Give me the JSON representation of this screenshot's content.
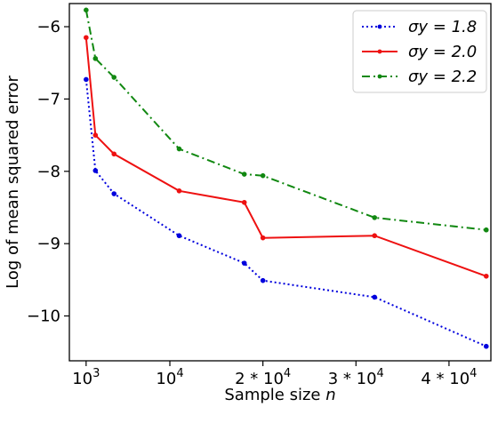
{
  "chart_data": {
    "type": "line",
    "title": "",
    "xlabel": "Sample size",
    "xlabel_var": "n",
    "ylabel": "Log of mean squared error",
    "xlim": [
      -800,
      44500
    ],
    "ylim": [
      -10.62,
      -5.68
    ],
    "x_ticks": [
      {
        "value": 1000,
        "base": "10",
        "sup": "3"
      },
      {
        "value": 10000,
        "base": "10",
        "sup": "4"
      },
      {
        "value": 20000,
        "base": "2 * 10",
        "sup": "4"
      },
      {
        "value": 30000,
        "base": "3 * 10",
        "sup": "4"
      },
      {
        "value": 40000,
        "base": "4 * 10",
        "sup": "4"
      }
    ],
    "y_ticks": [
      {
        "value": -6,
        "label": "−6"
      },
      {
        "value": -7,
        "label": "−7"
      },
      {
        "value": -8,
        "label": "−8"
      },
      {
        "value": -9,
        "label": "−9"
      },
      {
        "value": -10,
        "label": "−10"
      }
    ],
    "grid": false,
    "legend_position": "top-right",
    "x": [
      1000,
      2000,
      4000,
      11000,
      18000,
      20000,
      32000,
      44000
    ],
    "series": [
      {
        "name": "σy = 1.8",
        "color": "#0000dd",
        "linestyle": "dotted",
        "values": [
          -6.73,
          -7.99,
          -8.31,
          -8.89,
          -9.27,
          -9.51,
          -9.74,
          -10.42
        ]
      },
      {
        "name": "σy = 2.0",
        "color": "#ee1111",
        "linestyle": "solid",
        "values": [
          -6.15,
          -7.5,
          -7.76,
          -8.27,
          -8.43,
          -8.92,
          -8.89,
          -9.45
        ]
      },
      {
        "name": "σy = 2.2",
        "color": "#118811",
        "linestyle": "dashdot",
        "values": [
          -5.77,
          -6.44,
          -6.7,
          -7.69,
          -8.04,
          -8.06,
          -8.64,
          -8.81
        ]
      }
    ]
  }
}
